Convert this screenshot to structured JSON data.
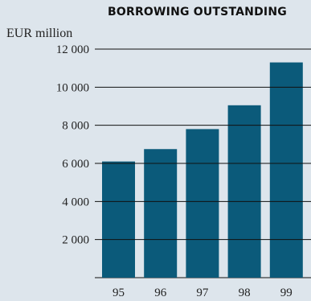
{
  "chart_data": {
    "type": "bar",
    "title": "BORROWING OUTSTANDING",
    "ylabel": "EUR million",
    "xlabel": "",
    "categories": [
      "95",
      "96",
      "97",
      "98",
      "99"
    ],
    "values": [
      6100,
      6750,
      7800,
      9050,
      11300
    ],
    "ylim": [
      0,
      12000
    ],
    "yticks": [
      2000,
      4000,
      6000,
      8000,
      10000,
      12000
    ],
    "ytick_labels": [
      "2 000",
      "4 000",
      "6 000",
      "8 000",
      "10 000",
      "12 000"
    ],
    "grid": true,
    "colors": {
      "bar": "#0b5a7a",
      "gridline": "#111111",
      "background": "#dde5ec"
    }
  }
}
